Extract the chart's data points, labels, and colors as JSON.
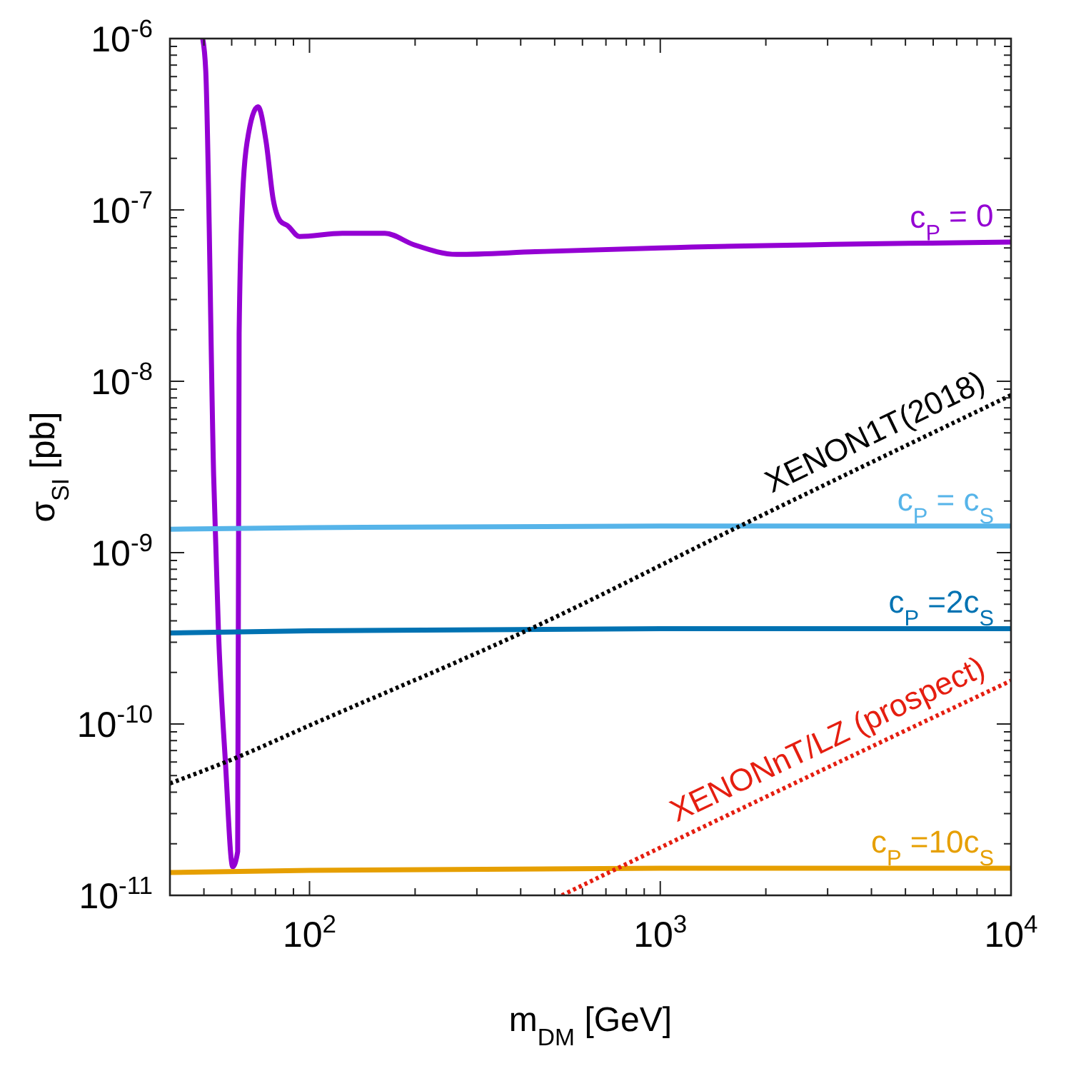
{
  "chart_data": {
    "type": "line",
    "xlabel": "m$_{DM}$ [GeV]",
    "ylabel": "σ$_{SI}$ [pb]",
    "log": "xy",
    "xlim": [
      40,
      10000
    ],
    "ylim": [
      1e-11,
      1e-06
    ],
    "xticks": [
      {
        "value": 50,
        "label": null
      },
      {
        "value": 60,
        "label": null
      },
      {
        "value": 70,
        "label": null
      },
      {
        "value": 80,
        "label": null
      },
      {
        "value": 90,
        "label": null
      },
      {
        "value": 100,
        "label": "10$^{2}$"
      },
      {
        "value": 200,
        "label": null
      },
      {
        "value": 300,
        "label": null
      },
      {
        "value": 400,
        "label": null
      },
      {
        "value": 500,
        "label": null
      },
      {
        "value": 600,
        "label": null
      },
      {
        "value": 700,
        "label": null
      },
      {
        "value": 800,
        "label": null
      },
      {
        "value": 900,
        "label": null
      },
      {
        "value": 1000,
        "label": "10$^{3}$"
      },
      {
        "value": 2000,
        "label": null
      },
      {
        "value": 3000,
        "label": null
      },
      {
        "value": 4000,
        "label": null
      },
      {
        "value": 5000,
        "label": null
      },
      {
        "value": 6000,
        "label": null
      },
      {
        "value": 7000,
        "label": null
      },
      {
        "value": 8000,
        "label": null
      },
      {
        "value": 9000,
        "label": null
      },
      {
        "value": 10000,
        "label": "10$^{4}$"
      }
    ],
    "yticks": [
      {
        "value": 1e-11,
        "label": "10$^{-11}$"
      },
      {
        "value": 2e-11,
        "label": null
      },
      {
        "value": 3e-11,
        "label": null
      },
      {
        "value": 4e-11,
        "label": null
      },
      {
        "value": 5e-11,
        "label": null
      },
      {
        "value": 6e-11,
        "label": null
      },
      {
        "value": 7e-11,
        "label": null
      },
      {
        "value": 8e-11,
        "label": null
      },
      {
        "value": 9e-11,
        "label": null
      },
      {
        "value": 1e-10,
        "label": "10$^{-10}$"
      },
      {
        "value": 2e-10,
        "label": null
      },
      {
        "value": 3e-10,
        "label": null
      },
      {
        "value": 4e-10,
        "label": null
      },
      {
        "value": 5e-10,
        "label": null
      },
      {
        "value": 6e-10,
        "label": null
      },
      {
        "value": 7e-10,
        "label": null
      },
      {
        "value": 8e-10,
        "label": null
      },
      {
        "value": 9e-10,
        "label": null
      },
      {
        "value": 1e-09,
        "label": "10$^{-9}$"
      },
      {
        "value": 2e-09,
        "label": null
      },
      {
        "value": 3e-09,
        "label": null
      },
      {
        "value": 4e-09,
        "label": null
      },
      {
        "value": 5e-09,
        "label": null
      },
      {
        "value": 6e-09,
        "label": null
      },
      {
        "value": 7e-09,
        "label": null
      },
      {
        "value": 8e-09,
        "label": null
      },
      {
        "value": 9e-09,
        "label": null
      },
      {
        "value": 1e-08,
        "label": "10$^{-8}$"
      },
      {
        "value": 2e-08,
        "label": null
      },
      {
        "value": 3e-08,
        "label": null
      },
      {
        "value": 4e-08,
        "label": null
      },
      {
        "value": 5e-08,
        "label": null
      },
      {
        "value": 6e-08,
        "label": null
      },
      {
        "value": 7e-08,
        "label": null
      },
      {
        "value": 8e-08,
        "label": null
      },
      {
        "value": 9e-08,
        "label": null
      },
      {
        "value": 1e-07,
        "label": "10$^{-7}$"
      },
      {
        "value": 2e-07,
        "label": null
      },
      {
        "value": 3e-07,
        "label": null
      },
      {
        "value": 4e-07,
        "label": null
      },
      {
        "value": 5e-07,
        "label": null
      },
      {
        "value": 6e-07,
        "label": null
      },
      {
        "value": 7e-07,
        "label": null
      },
      {
        "value": 8e-07,
        "label": null
      },
      {
        "value": 9e-07,
        "label": null
      },
      {
        "value": 1e-06,
        "label": "10$^{-6}$"
      }
    ],
    "series": [
      {
        "name": "c$_{P}$ = 0",
        "color": "#9400d3",
        "x": [
          49.6,
          50.6,
          53.3,
          55,
          57.6,
          60.4,
          62.4,
          63,
          64.4,
          66.4,
          71.3,
          75.2,
          78.8,
          82.6,
          86.6,
          93.6,
          124,
          164,
          199,
          263,
          440,
          1000,
          10000
        ],
        "values": [
          1e-06,
          6.5e-07,
          2.8e-09,
          3.5e-10,
          5.9e-11,
          1.47e-11,
          1.8e-11,
          1.9e-08,
          1.15e-07,
          2.5e-07,
          4e-07,
          2.5e-07,
          1.15e-07,
          8.6e-08,
          8.1e-08,
          7e-08,
          7.3e-08,
          7.3e-08,
          6.25e-08,
          5.5e-08,
          5.7e-08,
          6e-08,
          6.5e-08
        ]
      },
      {
        "name": "c$_{P}$ = c$_{S}$",
        "color": "#56b4e9",
        "x": [
          40,
          100,
          1000,
          10000
        ],
        "values": [
          1.37e-09,
          1.4e-09,
          1.43e-09,
          1.43e-09
        ]
      },
      {
        "name": "c$_{P}$ =2c$_{S}$",
        "color": "#0072b2",
        "x": [
          40,
          100,
          1000,
          10000
        ],
        "values": [
          3.4e-10,
          3.5e-10,
          3.6e-10,
          3.6e-10
        ]
      },
      {
        "name": "c$_{P}$ =10c$_{S}$",
        "color": "#e69f00",
        "x": [
          40,
          100,
          1000,
          10000
        ],
        "values": [
          1.36e-11,
          1.4e-11,
          1.44e-11,
          1.44e-11
        ]
      },
      {
        "name": "XENON1T(2018)",
        "color": "#000000",
        "line_style": "dotted",
        "x": [
          40,
          60,
          100,
          440,
          1640,
          10000
        ],
        "values": [
          4.5e-11,
          6.2e-11,
          9.8e-11,
          3.7e-10,
          1.39e-09,
          8.3e-09
        ]
      },
      {
        "name": "XENONnT/LZ (prospect)",
        "color": "#e51e10",
        "line_style": "dotted",
        "x": [
          524,
          1000,
          10000
        ],
        "values": [
          1e-11,
          1.9e-11,
          1.79e-10
        ]
      }
    ]
  }
}
